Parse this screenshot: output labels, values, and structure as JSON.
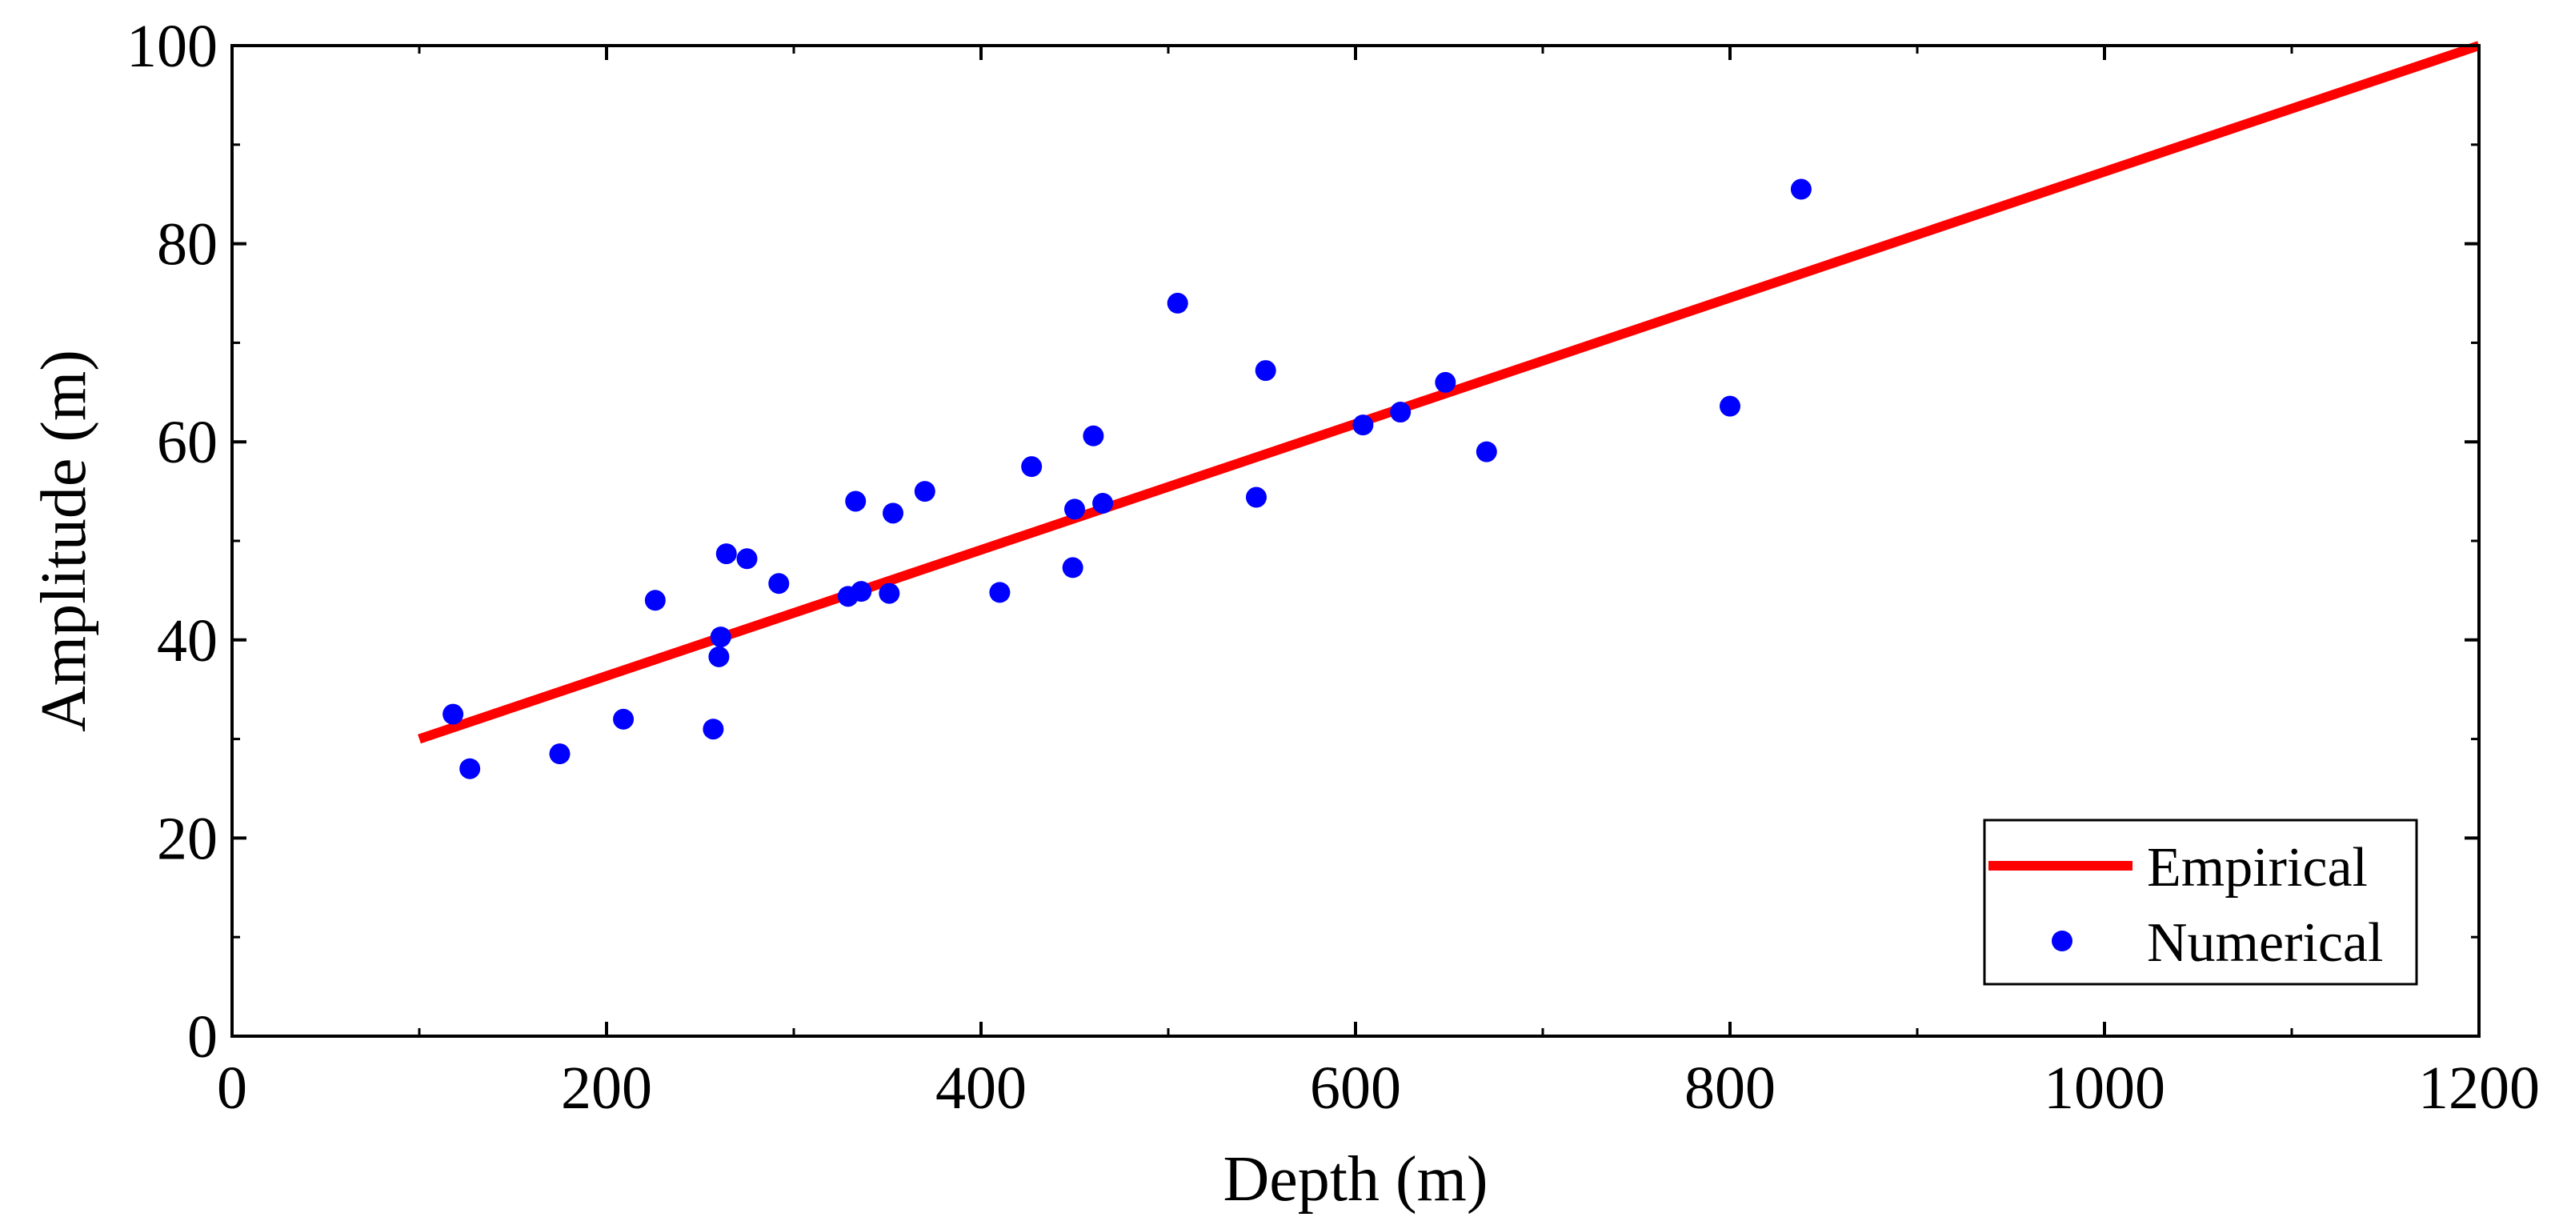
{
  "chart_data": {
    "type": "scatter",
    "title": "",
    "xlabel": "Depth (m)",
    "ylabel": "Amplitude (m)",
    "xlim": [
      0,
      1200
    ],
    "ylim": [
      0,
      100
    ],
    "xticks": [
      0,
      200,
      400,
      600,
      800,
      1000,
      1200
    ],
    "yticks": [
      0,
      20,
      40,
      60,
      80,
      100
    ],
    "xtick_labels": [
      "0",
      "200",
      "400",
      "600",
      "800",
      "1000",
      "1200"
    ],
    "ytick_labels": [
      "0",
      "20",
      "40",
      "60",
      "80",
      "100"
    ],
    "grid": false,
    "legend_position": "bottom-right",
    "series": [
      {
        "name": "Empirical",
        "kind": "line",
        "color": "#ff0000",
        "x": [
          100,
          1200
        ],
        "y": [
          30,
          100
        ]
      },
      {
        "name": "Numerical",
        "kind": "scatter",
        "color": "#0000ff",
        "x": [
          118,
          127,
          175,
          209,
          226,
          257,
          260,
          261,
          264,
          275,
          292,
          329,
          333,
          336,
          351,
          353,
          370,
          410,
          427,
          449,
          450,
          460,
          465,
          505,
          547,
          552,
          604,
          624,
          648,
          670,
          800,
          838
        ],
        "y": [
          32.5,
          27,
          28.5,
          32,
          44,
          31,
          38.3,
          40.3,
          48.7,
          48.2,
          45.7,
          44.4,
          54,
          44.9,
          44.7,
          52.8,
          55,
          44.8,
          57.5,
          47.3,
          53.2,
          60.6,
          53.8,
          74,
          54.4,
          67.2,
          61.7,
          63,
          66,
          59,
          63.6,
          85.5
        ]
      }
    ]
  }
}
